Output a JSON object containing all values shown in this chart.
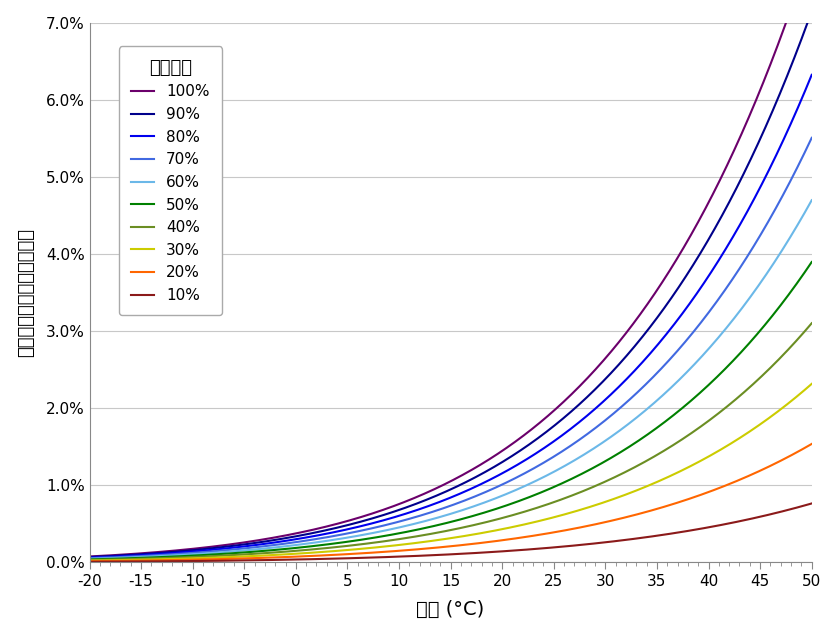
{
  "title": "",
  "xlabel": "温度 (°C)",
  "ylabel": "水气在空气中的百分比含量",
  "legend_title": "相对湿度",
  "temp_min": -20,
  "temp_max": 50,
  "ylim": [
    0.0,
    0.07
  ],
  "yticks": [
    0.0,
    0.01,
    0.02,
    0.03,
    0.04,
    0.05,
    0.06,
    0.07
  ],
  "ytick_labels": [
    "0.0%",
    "1.0%",
    "2.0%",
    "3.0%",
    "4.0%",
    "5.0%",
    "6.0%",
    "7.0%"
  ],
  "xticks": [
    -20,
    -15,
    -10,
    -5,
    0,
    5,
    10,
    15,
    20,
    25,
    30,
    35,
    40,
    45,
    50
  ],
  "relative_humidities": [
    1.0,
    0.9,
    0.8,
    0.7,
    0.6,
    0.5,
    0.4,
    0.3,
    0.2,
    0.1
  ],
  "rh_labels": [
    "100%",
    "90%",
    "80%",
    "70%",
    "60%",
    "50%",
    "40%",
    "30%",
    "20%",
    "10%"
  ],
  "colors": [
    "#6B006B",
    "#00008B",
    "#0000EE",
    "#4169E1",
    "#6BB8E8",
    "#008000",
    "#6B8E23",
    "#CCCC00",
    "#FF6600",
    "#8B1A1A"
  ],
  "background_color": "#FFFFFF",
  "grid_color": "#C8C8C8",
  "linewidth": 1.5
}
